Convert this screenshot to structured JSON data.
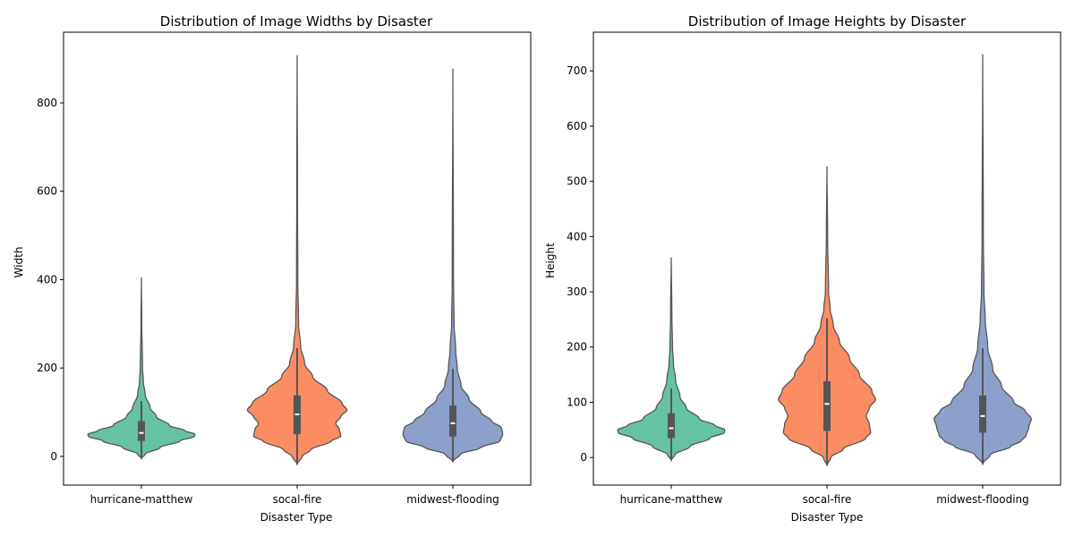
{
  "chart_data": [
    {
      "type": "violin",
      "title": "Distribution of Image Widths by Disaster",
      "xlabel": "Disaster Type",
      "ylabel": "Width",
      "ylim": [
        -65,
        960
      ],
      "yticks": [
        0,
        200,
        400,
        600,
        800
      ],
      "categories": [
        "hurricane-matthew",
        "socal-fire",
        "midwest-flooding"
      ],
      "series": [
        {
          "color": "#66c2a5",
          "min": -5,
          "max": 405,
          "q1": 35,
          "median": 53,
          "q3": 80,
          "whisker_low": -5,
          "whisker_high": 125,
          "profile": [
            [
              -5,
              0
            ],
            [
              5,
              0.06
            ],
            [
              20,
              0.3
            ],
            [
              35,
              0.62
            ],
            [
              45,
              0.85
            ],
            [
              50,
              0.86
            ],
            [
              58,
              0.7
            ],
            [
              70,
              0.45
            ],
            [
              90,
              0.24
            ],
            [
              110,
              0.14
            ],
            [
              140,
              0.06
            ],
            [
              170,
              0.03
            ],
            [
              200,
              0.018
            ],
            [
              300,
              0.006
            ],
            [
              405,
              0
            ]
          ]
        },
        {
          "color": "#fc8d62",
          "min": -18,
          "max": 908,
          "q1": 50,
          "median": 95,
          "q3": 138,
          "whisker_low": -18,
          "whisker_high": 245,
          "profile": [
            [
              -18,
              0
            ],
            [
              0,
              0.08
            ],
            [
              15,
              0.22
            ],
            [
              35,
              0.55
            ],
            [
              45,
              0.7
            ],
            [
              60,
              0.68
            ],
            [
              75,
              0.62
            ],
            [
              90,
              0.7
            ],
            [
              105,
              0.8
            ],
            [
              120,
              0.72
            ],
            [
              150,
              0.48
            ],
            [
              180,
              0.25
            ],
            [
              210,
              0.12
            ],
            [
              250,
              0.055
            ],
            [
              300,
              0.022
            ],
            [
              400,
              0.01
            ],
            [
              600,
              0.006
            ],
            [
              908,
              0
            ]
          ]
        },
        {
          "color": "#8da0cb",
          "min": -12,
          "max": 878,
          "q1": 45,
          "median": 75,
          "q3": 115,
          "whisker_low": -12,
          "whisker_high": 198,
          "profile": [
            [
              -12,
              0
            ],
            [
              5,
              0.12
            ],
            [
              20,
              0.45
            ],
            [
              35,
              0.76
            ],
            [
              50,
              0.8
            ],
            [
              65,
              0.78
            ],
            [
              80,
              0.62
            ],
            [
              100,
              0.45
            ],
            [
              130,
              0.26
            ],
            [
              160,
              0.13
            ],
            [
              200,
              0.07
            ],
            [
              240,
              0.045
            ],
            [
              300,
              0.02
            ],
            [
              400,
              0.01
            ],
            [
              878,
              0
            ]
          ]
        }
      ]
    },
    {
      "type": "violin",
      "title": "Distribution of Image Heights by Disaster",
      "xlabel": "Disaster Type",
      "ylabel": "Height",
      "ylim": [
        -50,
        770
      ],
      "yticks": [
        0,
        100,
        200,
        300,
        400,
        500,
        600,
        700
      ],
      "categories": [
        "hurricane-matthew",
        "socal-fire",
        "midwest-flooding"
      ],
      "series": [
        {
          "color": "#66c2a5",
          "min": -5,
          "max": 362,
          "q1": 35,
          "median": 53,
          "q3": 80,
          "whisker_low": -5,
          "whisker_high": 125,
          "profile": [
            [
              -5,
              0
            ],
            [
              5,
              0.06
            ],
            [
              20,
              0.3
            ],
            [
              35,
              0.62
            ],
            [
              45,
              0.85
            ],
            [
              50,
              0.86
            ],
            [
              58,
              0.7
            ],
            [
              70,
              0.45
            ],
            [
              90,
              0.24
            ],
            [
              110,
              0.14
            ],
            [
              140,
              0.07
            ],
            [
              170,
              0.035
            ],
            [
              200,
              0.02
            ],
            [
              260,
              0.01
            ],
            [
              362,
              0
            ]
          ]
        },
        {
          "color": "#fc8d62",
          "min": -15,
          "max": 527,
          "q1": 48,
          "median": 97,
          "q3": 138,
          "whisker_low": -15,
          "whisker_high": 252,
          "profile": [
            [
              -15,
              0
            ],
            [
              0,
              0.06
            ],
            [
              15,
              0.26
            ],
            [
              35,
              0.62
            ],
            [
              45,
              0.7
            ],
            [
              60,
              0.68
            ],
            [
              75,
              0.63
            ],
            [
              90,
              0.68
            ],
            [
              105,
              0.78
            ],
            [
              120,
              0.72
            ],
            [
              150,
              0.52
            ],
            [
              180,
              0.36
            ],
            [
              210,
              0.2
            ],
            [
              240,
              0.1
            ],
            [
              270,
              0.05
            ],
            [
              300,
              0.025
            ],
            [
              400,
              0.01
            ],
            [
              527,
              0
            ]
          ]
        },
        {
          "color": "#8da0cb",
          "min": -12,
          "max": 730,
          "q1": 45,
          "median": 75,
          "q3": 112,
          "whisker_low": -12,
          "whisker_high": 198,
          "profile": [
            [
              -12,
              0
            ],
            [
              5,
              0.12
            ],
            [
              20,
              0.45
            ],
            [
              30,
              0.62
            ],
            [
              40,
              0.7
            ],
            [
              55,
              0.74
            ],
            [
              70,
              0.78
            ],
            [
              85,
              0.68
            ],
            [
              100,
              0.5
            ],
            [
              130,
              0.3
            ],
            [
              160,
              0.16
            ],
            [
              200,
              0.08
            ],
            [
              250,
              0.04
            ],
            [
              300,
              0.02
            ],
            [
              400,
              0.01
            ],
            [
              730,
              0
            ]
          ]
        }
      ]
    }
  ],
  "colors": {
    "edge": "#555555",
    "box": "#555555",
    "median": "#ffffff"
  }
}
